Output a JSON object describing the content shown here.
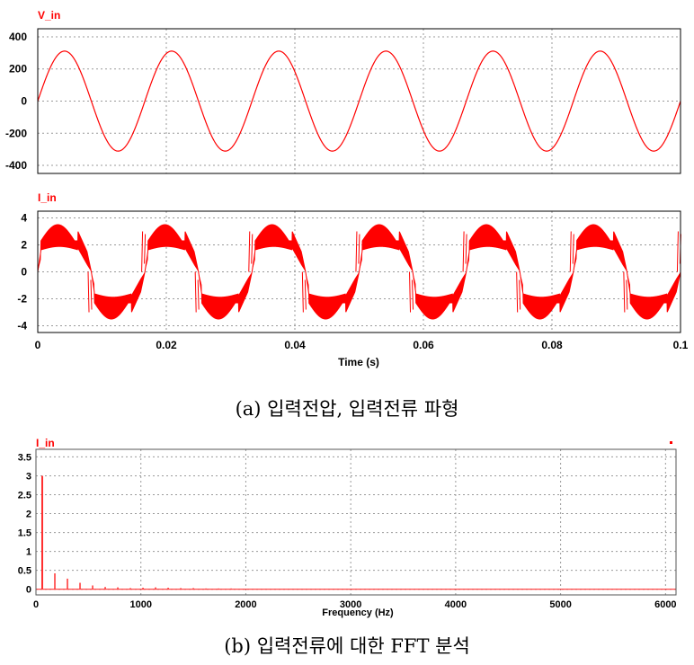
{
  "colors": {
    "trace": "#ff0000",
    "grid": "#9a9a9a",
    "frame": "#000000",
    "fft_trace": "#ff3030"
  },
  "captions": {
    "a": "(a) 입력전압, 입력전류 파형",
    "b": "(b) 입력전류에 대한 FFT 분석"
  },
  "chart_data": [
    {
      "type": "line",
      "title": "V_in",
      "xlabel": "",
      "ylabel": "",
      "xlim": [
        0,
        0.1
      ],
      "ylim": [
        -450,
        450
      ],
      "yticks": [
        400,
        200,
        0,
        -200,
        -400
      ],
      "xticks": [
        0,
        0.02,
        0.04,
        0.06,
        0.08,
        0.1
      ],
      "grid": true,
      "series": [
        {
          "amplitude": 311,
          "frequency_hz": 60,
          "phase": 0,
          "x": [
            0,
            0.00417,
            0.00833,
            0.0125,
            0.01667,
            0.1
          ],
          "values": [
            0,
            311,
            0,
            -311,
            0,
            0
          ]
        }
      ]
    },
    {
      "type": "line",
      "title": "I_in",
      "xlabel": "Time (s)",
      "ylabel": "",
      "xlim": [
        0,
        0.1
      ],
      "ylim": [
        -4.5,
        4.5
      ],
      "yticks": [
        4,
        2,
        0,
        -2,
        -4
      ],
      "xticks": [
        "0",
        "0.02",
        "0.04",
        "0.06",
        "0.08",
        "0.1"
      ],
      "grid": true,
      "series": [
        {
          "frequency_hz": 60,
          "shape": "quasi-square with switching ripple",
          "upper_envelope_peak": 3.5,
          "lower_envelope_at_peak": 1.5,
          "spikes_to": -3
        }
      ]
    },
    {
      "type": "bar",
      "title": "I_in",
      "xlabel": "Frequency (Hz)",
      "ylabel": "",
      "xlim": [
        0,
        6100
      ],
      "ylim": [
        -0.15,
        3.7
      ],
      "yticks": [
        "3.5",
        "3",
        "2.5",
        "2",
        "1.5",
        "1",
        "0.5",
        "0"
      ],
      "xticks": [
        "0",
        "1000",
        "2000",
        "3000",
        "4000",
        "5000",
        "6000"
      ],
      "grid": true,
      "x": [
        60,
        180,
        300,
        420,
        540,
        660,
        780,
        900,
        1020,
        1140,
        1260,
        1380,
        1500,
        1620,
        1740,
        1860
      ],
      "values": [
        3.0,
        0.42,
        0.28,
        0.17,
        0.1,
        0.06,
        0.05,
        0.03,
        0.04,
        0.05,
        0.04,
        0.03,
        0.03,
        0.02,
        0.02,
        0.02
      ]
    }
  ]
}
